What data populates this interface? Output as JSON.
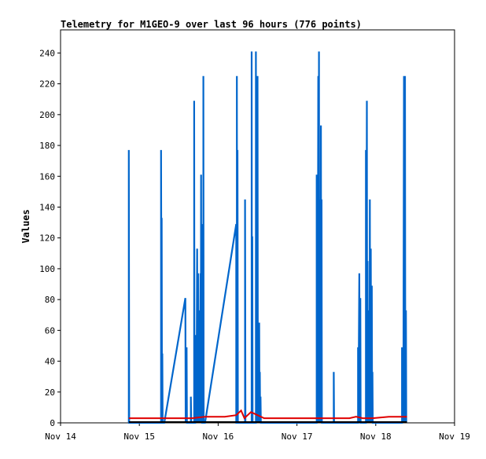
{
  "chart_data": {
    "type": "line",
    "title": "Telemetry for M1GEO-9 over last 96 hours (776 points)",
    "xlabel": "",
    "ylabel": "Values",
    "x_ticks": [
      "Nov 14",
      "Nov 15",
      "Nov 16",
      "Nov 17",
      "Nov 18",
      "Nov 19"
    ],
    "x_tick_values": [
      0,
      24,
      48,
      72,
      96,
      120
    ],
    "xlim": [
      0,
      120
    ],
    "y_ticks": [
      "0",
      "20",
      "40",
      "60",
      "80",
      "100",
      "120",
      "140",
      "160",
      "180",
      "200",
      "220",
      "240"
    ],
    "y_tick_values": [
      0,
      20,
      40,
      60,
      80,
      100,
      120,
      140,
      160,
      180,
      200,
      220,
      240
    ],
    "ylim": [
      0,
      255
    ],
    "grid": false,
    "legend": "none",
    "colors": {
      "blue": "#0066cc",
      "red": "#e00000",
      "black": "#000000"
    },
    "series": [
      {
        "color": "#0066cc",
        "points": [
          [
            20.8,
            0
          ],
          [
            20.8,
            177
          ],
          [
            20.9,
            0
          ],
          [
            30.6,
            0
          ],
          [
            30.6,
            177
          ],
          [
            30.8,
            0
          ],
          [
            30.8,
            133
          ],
          [
            30.9,
            0
          ],
          [
            31.0,
            45
          ],
          [
            31.1,
            0
          ],
          [
            31.6,
            0
          ],
          [
            38.0,
            81
          ],
          [
            38.1,
            0
          ],
          [
            38.4,
            49
          ],
          [
            38.5,
            0
          ],
          [
            39.7,
            0
          ],
          [
            39.7,
            17
          ],
          [
            39.8,
            0
          ],
          [
            40.7,
            0
          ],
          [
            40.7,
            209
          ],
          [
            40.8,
            0
          ],
          [
            41.0,
            0
          ],
          [
            41.0,
            49
          ],
          [
            41.2,
            0
          ],
          [
            41.3,
            57
          ],
          [
            41.4,
            0
          ],
          [
            41.6,
            113
          ],
          [
            41.7,
            0
          ],
          [
            41.9,
            97
          ],
          [
            42.0,
            0
          ],
          [
            42.2,
            41
          ],
          [
            42.3,
            0
          ],
          [
            42.4,
            73
          ],
          [
            42.5,
            0
          ],
          [
            42.6,
            97
          ],
          [
            42.7,
            0
          ],
          [
            42.8,
            161
          ],
          [
            42.9,
            0
          ],
          [
            43.0,
            129
          ],
          [
            43.1,
            0
          ],
          [
            43.5,
            0
          ],
          [
            43.5,
            225
          ],
          [
            43.6,
            0
          ],
          [
            44.0,
            0
          ],
          [
            53.5,
            129
          ],
          [
            53.5,
            0
          ],
          [
            53.7,
            0
          ],
          [
            53.7,
            225
          ],
          [
            53.8,
            0
          ],
          [
            53.9,
            177
          ],
          [
            54.0,
            0
          ],
          [
            56.2,
            0
          ],
          [
            56.2,
            145
          ],
          [
            56.3,
            0
          ],
          [
            58.2,
            0
          ],
          [
            58.2,
            241
          ],
          [
            58.3,
            0
          ],
          [
            58.4,
            121
          ],
          [
            58.5,
            0
          ],
          [
            59.5,
            0
          ],
          [
            59.5,
            241
          ],
          [
            59.6,
            0
          ],
          [
            59.8,
            161
          ],
          [
            59.9,
            0
          ],
          [
            60.0,
            225
          ],
          [
            60.1,
            0
          ],
          [
            60.3,
            33
          ],
          [
            60.4,
            0
          ],
          [
            60.5,
            65
          ],
          [
            60.6,
            0
          ],
          [
            60.7,
            33
          ],
          [
            60.8,
            0
          ],
          [
            60.9,
            17
          ],
          [
            61.0,
            0
          ],
          [
            78.0,
            0
          ],
          [
            78.0,
            161
          ],
          [
            78.1,
            0
          ],
          [
            78.2,
            113
          ],
          [
            78.3,
            0
          ],
          [
            78.5,
            225
          ],
          [
            78.6,
            0
          ],
          [
            78.7,
            241
          ],
          [
            78.8,
            0
          ],
          [
            78.9,
            145
          ],
          [
            79.0,
            0
          ],
          [
            79.1,
            129
          ],
          [
            79.2,
            0
          ],
          [
            79.3,
            193
          ],
          [
            79.4,
            0
          ],
          [
            79.5,
            145
          ],
          [
            79.6,
            0
          ],
          [
            83.2,
            0
          ],
          [
            83.2,
            33
          ],
          [
            83.3,
            0
          ],
          [
            90.6,
            0
          ],
          [
            90.6,
            49
          ],
          [
            90.7,
            0
          ],
          [
            91.0,
            97
          ],
          [
            91.1,
            0
          ],
          [
            91.3,
            81
          ],
          [
            91.4,
            0
          ],
          [
            93.0,
            0
          ],
          [
            93.0,
            177
          ],
          [
            93.1,
            0
          ],
          [
            93.3,
            209
          ],
          [
            93.4,
            0
          ],
          [
            93.5,
            105
          ],
          [
            93.6,
            0
          ],
          [
            94.0,
            73
          ],
          [
            94.1,
            0
          ],
          [
            94.2,
            145
          ],
          [
            94.3,
            0
          ],
          [
            94.5,
            113
          ],
          [
            94.6,
            0
          ],
          [
            94.8,
            89
          ],
          [
            94.9,
            0
          ],
          [
            95.0,
            33
          ],
          [
            95.1,
            0
          ],
          [
            104.0,
            0
          ],
          [
            104.0,
            49
          ],
          [
            104.1,
            0
          ],
          [
            104.3,
            37
          ],
          [
            104.4,
            0
          ],
          [
            104.6,
            225
          ],
          [
            104.7,
            0
          ],
          [
            104.9,
            225
          ],
          [
            105.0,
            0
          ],
          [
            105.2,
            73
          ],
          [
            105.3,
            0
          ]
        ]
      },
      {
        "color": "#e00000",
        "points": [
          [
            20.8,
            3
          ],
          [
            30.0,
            3
          ],
          [
            31.0,
            3
          ],
          [
            38.0,
            3
          ],
          [
            40.0,
            3
          ],
          [
            44.0,
            4
          ],
          [
            50.0,
            4
          ],
          [
            53.5,
            5
          ],
          [
            55.0,
            8
          ],
          [
            56.0,
            3
          ],
          [
            58.0,
            7
          ],
          [
            60.0,
            5
          ],
          [
            62.0,
            3
          ],
          [
            66.0,
            3
          ],
          [
            72.0,
            3
          ],
          [
            80.0,
            3
          ],
          [
            86.0,
            3
          ],
          [
            88.0,
            3
          ],
          [
            90.0,
            4
          ],
          [
            92.0,
            3
          ],
          [
            95.0,
            3
          ],
          [
            100.0,
            4
          ],
          [
            105.5,
            4
          ]
        ]
      },
      {
        "color": "#000000",
        "points": [
          [
            20.8,
            0.5
          ],
          [
            105.5,
            0.5
          ]
        ]
      }
    ]
  }
}
